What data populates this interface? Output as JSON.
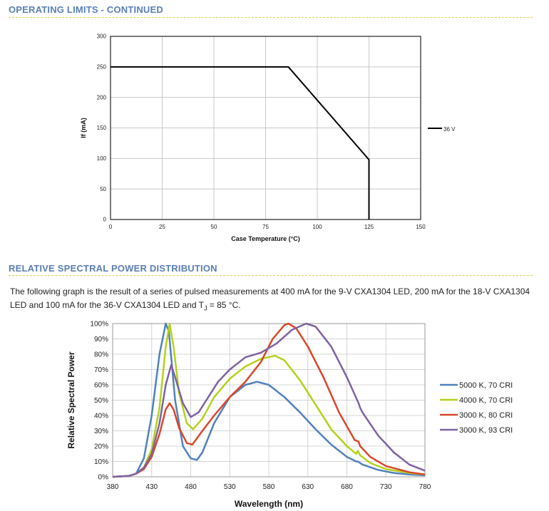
{
  "section1": {
    "title": "OPERATING LIMITS - CONTINUED"
  },
  "section2": {
    "title": "RELATIVE SPECTRAL POWER DISTRIBUTION",
    "paragraph": "The following graph is the result of a series of pulsed measurements at 400 mA for the 9-V CXA1304 LED, 200 mA for the 18-V CXA1304 LED and 100 mA for the 36-V CXA1304 LED and T",
    "subscript": "J",
    "paragraph_end": " = 85 °C."
  },
  "chart_data": [
    {
      "type": "line",
      "xlabel": "Case Temperature (°C)",
      "ylabel": "If (mA)",
      "xlim": [
        0,
        150
      ],
      "ylim": [
        0,
        300
      ],
      "xticks": [
        "0",
        "25",
        "50",
        "75",
        "100",
        "125",
        "150"
      ],
      "yticks": [
        "0",
        "50",
        "100",
        "150",
        "200",
        "250",
        "300"
      ],
      "grid": true,
      "legend": "right",
      "series": [
        {
          "name": "36 V",
          "color": "#000000",
          "points": [
            [
              0,
              250
            ],
            [
              86,
              250
            ],
            [
              125,
              98
            ],
            [
              125,
              0
            ]
          ]
        }
      ]
    },
    {
      "type": "line",
      "xlabel": "Wavelength (nm)",
      "ylabel": "Relative Spectral Power",
      "xlim": [
        380,
        780
      ],
      "ylim": [
        0,
        100
      ],
      "xticks": [
        "380",
        "430",
        "480",
        "530",
        "580",
        "630",
        "680",
        "730",
        "780"
      ],
      "yticks": [
        "0%",
        "10%",
        "20%",
        "30%",
        "40%",
        "50%",
        "60%",
        "70%",
        "80%",
        "90%",
        "100%"
      ],
      "grid": true,
      "legend": "right",
      "series": [
        {
          "name": "5000 K, 70 CRI",
          "color": "#4f81bd",
          "points": [
            [
              380,
              0
            ],
            [
              400,
              0.5
            ],
            [
              410,
              2
            ],
            [
              420,
              12
            ],
            [
              430,
              40
            ],
            [
              440,
              80
            ],
            [
              448,
              100
            ],
            [
              452,
              95
            ],
            [
              460,
              50
            ],
            [
              470,
              20
            ],
            [
              480,
              12
            ],
            [
              488,
              11
            ],
            [
              495,
              16
            ],
            [
              510,
              35
            ],
            [
              530,
              52
            ],
            [
              550,
              60
            ],
            [
              565,
              62
            ],
            [
              580,
              60
            ],
            [
              600,
              52
            ],
            [
              620,
              42
            ],
            [
              640,
              31
            ],
            [
              660,
              21
            ],
            [
              680,
              13
            ],
            [
              692,
              10
            ],
            [
              694,
              10
            ],
            [
              700,
              8
            ],
            [
              720,
              4.5
            ],
            [
              740,
              2.5
            ],
            [
              760,
              1.5
            ],
            [
              780,
              1
            ]
          ]
        },
        {
          "name": "4000 K, 70 CRI",
          "color": "#b5d11b",
          "points": [
            [
              380,
              0
            ],
            [
              400,
              0.5
            ],
            [
              410,
              2
            ],
            [
              420,
              6
            ],
            [
              430,
              18
            ],
            [
              440,
              45
            ],
            [
              448,
              85
            ],
            [
              453,
              100
            ],
            [
              458,
              85
            ],
            [
              465,
              55
            ],
            [
              475,
              35
            ],
            [
              483,
              31
            ],
            [
              495,
              38
            ],
            [
              510,
              52
            ],
            [
              530,
              64
            ],
            [
              550,
              72
            ],
            [
              570,
              77
            ],
            [
              588,
              79
            ],
            [
              600,
              76
            ],
            [
              620,
              63
            ],
            [
              640,
              47
            ],
            [
              660,
              31
            ],
            [
              680,
              20
            ],
            [
              692,
              15
            ],
            [
              694,
              17
            ],
            [
              697,
              14
            ],
            [
              710,
              9
            ],
            [
              730,
              5
            ],
            [
              760,
              2.5
            ],
            [
              780,
              1.5
            ]
          ]
        },
        {
          "name": "3000 K, 80 CRI",
          "color": "#d9472b",
          "points": [
            [
              380,
              0
            ],
            [
              400,
              0.5
            ],
            [
              410,
              2
            ],
            [
              420,
              5
            ],
            [
              430,
              13
            ],
            [
              440,
              28
            ],
            [
              448,
              44
            ],
            [
              453,
              48
            ],
            [
              458,
              44
            ],
            [
              465,
              32
            ],
            [
              475,
              22
            ],
            [
              482,
              21
            ],
            [
              495,
              30
            ],
            [
              510,
              40
            ],
            [
              530,
              52
            ],
            [
              550,
              62
            ],
            [
              570,
              75
            ],
            [
              585,
              90
            ],
            [
              600,
              99
            ],
            [
              605,
              100
            ],
            [
              615,
              97
            ],
            [
              630,
              85
            ],
            [
              650,
              65
            ],
            [
              670,
              42
            ],
            [
              690,
              24
            ],
            [
              695,
              23
            ],
            [
              697,
              20
            ],
            [
              710,
              13
            ],
            [
              730,
              7
            ],
            [
              760,
              3
            ],
            [
              780,
              1.5
            ]
          ]
        },
        {
          "name": "3000 K, 93 CRI",
          "color": "#7e62a1",
          "points": [
            [
              380,
              0
            ],
            [
              400,
              0.5
            ],
            [
              410,
              2
            ],
            [
              420,
              6
            ],
            [
              430,
              15
            ],
            [
              440,
              35
            ],
            [
              448,
              60
            ],
            [
              455,
              73
            ],
            [
              460,
              65
            ],
            [
              470,
              48
            ],
            [
              480,
              39
            ],
            [
              490,
              42
            ],
            [
              500,
              50
            ],
            [
              515,
              62
            ],
            [
              530,
              70
            ],
            [
              550,
              78
            ],
            [
              570,
              81
            ],
            [
              590,
              87
            ],
            [
              610,
              96
            ],
            [
              628,
              100
            ],
            [
              640,
              98
            ],
            [
              660,
              85
            ],
            [
              680,
              65
            ],
            [
              695,
              48
            ],
            [
              697,
              45
            ],
            [
              700,
              42
            ],
            [
              720,
              27
            ],
            [
              740,
              16
            ],
            [
              760,
              8
            ],
            [
              780,
              4
            ]
          ]
        }
      ]
    }
  ]
}
